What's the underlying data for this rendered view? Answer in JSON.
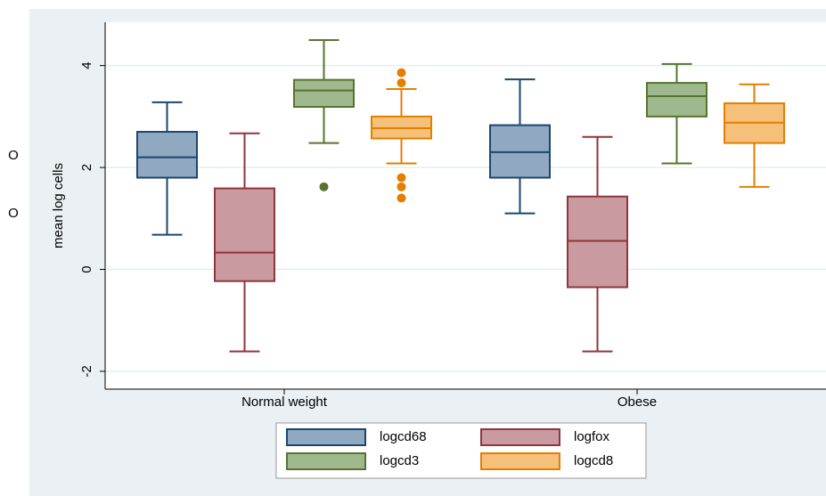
{
  "chart_data": {
    "type": "box",
    "side_labels": [
      "O",
      "O"
    ],
    "y_label": "mean log cells",
    "categories": [
      "Normal weight",
      "Obese"
    ],
    "ylim": [
      -2.35,
      4.85
    ],
    "yticks": [
      -2,
      0,
      2,
      4
    ],
    "grid": true,
    "series": [
      {
        "name": "logcd68",
        "color": "#90a8c0",
        "stroke": "#1a476f",
        "whisker_low": [
          0.68,
          1.1
        ],
        "q1": [
          1.8,
          1.8
        ],
        "median": [
          2.2,
          2.3
        ],
        "q3": [
          2.7,
          2.83
        ],
        "whisker_high": [
          3.28,
          3.73
        ],
        "outliers": [
          [],
          []
        ]
      },
      {
        "name": "logfox",
        "color": "#c99aa0",
        "stroke": "#90353b",
        "whisker_low": [
          -1.61,
          -1.61
        ],
        "q1": [
          -0.23,
          -0.35
        ],
        "median": [
          0.33,
          0.56
        ],
        "q3": [
          1.59,
          1.43
        ],
        "whisker_high": [
          2.67,
          2.6
        ],
        "outliers": [
          [],
          []
        ]
      },
      {
        "name": "logcd3",
        "color": "#a0b88e",
        "stroke": "#55752f",
        "whisker_low": [
          2.48,
          2.08
        ],
        "q1": [
          3.19,
          3.0
        ],
        "median": [
          3.51,
          3.4
        ],
        "q3": [
          3.72,
          3.66
        ],
        "whisker_high": [
          4.5,
          4.03
        ],
        "outliers": [
          [
            1.62
          ],
          []
        ]
      },
      {
        "name": "logcd8",
        "color": "#f5c07a",
        "stroke": "#e37e00",
        "whisker_low": [
          2.08,
          1.62
        ],
        "q1": [
          2.57,
          2.48
        ],
        "median": [
          2.77,
          2.88
        ],
        "q3": [
          3.0,
          3.26
        ],
        "whisker_high": [
          3.54,
          3.63
        ],
        "outliers": [
          [
            3.86,
            3.66,
            1.8,
            1.62,
            1.4
          ],
          []
        ]
      }
    ],
    "legend": {
      "position": "bottom",
      "columns": 2
    }
  }
}
